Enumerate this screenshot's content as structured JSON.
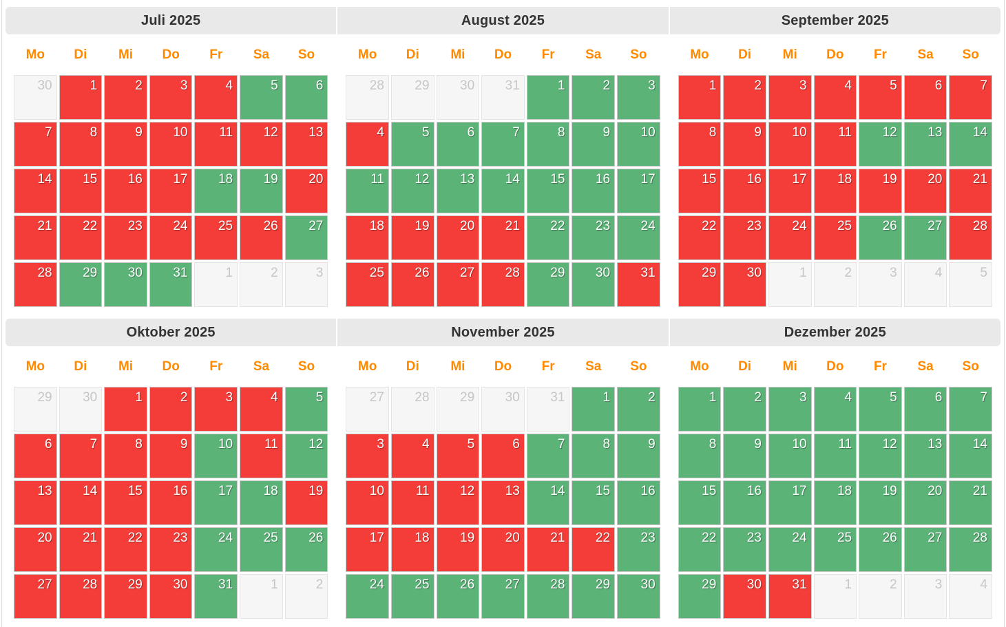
{
  "calendar": {
    "weekday_labels": [
      "Mo",
      "Di",
      "Mi",
      "Do",
      "Fr",
      "Sa",
      "So"
    ],
    "state_codes": {
      "a": "available",
      "b": "booked",
      "o": "other-month"
    },
    "months": [
      {
        "title": "Juli 2025",
        "days": [
          [
            30,
            "o"
          ],
          [
            1,
            "b"
          ],
          [
            2,
            "b"
          ],
          [
            3,
            "b"
          ],
          [
            4,
            "b"
          ],
          [
            5,
            "a"
          ],
          [
            6,
            "a"
          ],
          [
            7,
            "b"
          ],
          [
            8,
            "b"
          ],
          [
            9,
            "b"
          ],
          [
            10,
            "b"
          ],
          [
            11,
            "b"
          ],
          [
            12,
            "b"
          ],
          [
            13,
            "b"
          ],
          [
            14,
            "b"
          ],
          [
            15,
            "b"
          ],
          [
            16,
            "b"
          ],
          [
            17,
            "b"
          ],
          [
            18,
            "a"
          ],
          [
            19,
            "a"
          ],
          [
            20,
            "b"
          ],
          [
            21,
            "b"
          ],
          [
            22,
            "b"
          ],
          [
            23,
            "b"
          ],
          [
            24,
            "b"
          ],
          [
            25,
            "b"
          ],
          [
            26,
            "b"
          ],
          [
            27,
            "a"
          ],
          [
            28,
            "b"
          ],
          [
            29,
            "a"
          ],
          [
            30,
            "a"
          ],
          [
            31,
            "a"
          ],
          [
            1,
            "o"
          ],
          [
            2,
            "o"
          ],
          [
            3,
            "o"
          ]
        ]
      },
      {
        "title": "August 2025",
        "days": [
          [
            28,
            "o"
          ],
          [
            29,
            "o"
          ],
          [
            30,
            "o"
          ],
          [
            31,
            "o"
          ],
          [
            1,
            "a"
          ],
          [
            2,
            "a"
          ],
          [
            3,
            "a"
          ],
          [
            4,
            "b"
          ],
          [
            5,
            "a"
          ],
          [
            6,
            "a"
          ],
          [
            7,
            "a"
          ],
          [
            8,
            "a"
          ],
          [
            9,
            "a"
          ],
          [
            10,
            "a"
          ],
          [
            11,
            "a"
          ],
          [
            12,
            "a"
          ],
          [
            13,
            "a"
          ],
          [
            14,
            "a"
          ],
          [
            15,
            "a"
          ],
          [
            16,
            "a"
          ],
          [
            17,
            "a"
          ],
          [
            18,
            "b"
          ],
          [
            19,
            "b"
          ],
          [
            20,
            "b"
          ],
          [
            21,
            "b"
          ],
          [
            22,
            "a"
          ],
          [
            23,
            "a"
          ],
          [
            24,
            "a"
          ],
          [
            25,
            "b"
          ],
          [
            26,
            "b"
          ],
          [
            27,
            "b"
          ],
          [
            28,
            "b"
          ],
          [
            29,
            "a"
          ],
          [
            30,
            "a"
          ],
          [
            31,
            "b"
          ]
        ]
      },
      {
        "title": "September 2025",
        "days": [
          [
            1,
            "b"
          ],
          [
            2,
            "b"
          ],
          [
            3,
            "b"
          ],
          [
            4,
            "b"
          ],
          [
            5,
            "b"
          ],
          [
            6,
            "b"
          ],
          [
            7,
            "b"
          ],
          [
            8,
            "b"
          ],
          [
            9,
            "b"
          ],
          [
            10,
            "b"
          ],
          [
            11,
            "b"
          ],
          [
            12,
            "a"
          ],
          [
            13,
            "a"
          ],
          [
            14,
            "a"
          ],
          [
            15,
            "b"
          ],
          [
            16,
            "b"
          ],
          [
            17,
            "b"
          ],
          [
            18,
            "b"
          ],
          [
            19,
            "b"
          ],
          [
            20,
            "b"
          ],
          [
            21,
            "b"
          ],
          [
            22,
            "b"
          ],
          [
            23,
            "b"
          ],
          [
            24,
            "b"
          ],
          [
            25,
            "b"
          ],
          [
            26,
            "a"
          ],
          [
            27,
            "a"
          ],
          [
            28,
            "b"
          ],
          [
            29,
            "b"
          ],
          [
            30,
            "b"
          ],
          [
            1,
            "o"
          ],
          [
            2,
            "o"
          ],
          [
            3,
            "o"
          ],
          [
            4,
            "o"
          ],
          [
            5,
            "o"
          ]
        ]
      },
      {
        "title": "Oktober 2025",
        "days": [
          [
            29,
            "o"
          ],
          [
            30,
            "o"
          ],
          [
            1,
            "b"
          ],
          [
            2,
            "b"
          ],
          [
            3,
            "b"
          ],
          [
            4,
            "b"
          ],
          [
            5,
            "a"
          ],
          [
            6,
            "b"
          ],
          [
            7,
            "b"
          ],
          [
            8,
            "b"
          ],
          [
            9,
            "b"
          ],
          [
            10,
            "a"
          ],
          [
            11,
            "b"
          ],
          [
            12,
            "a"
          ],
          [
            13,
            "b"
          ],
          [
            14,
            "b"
          ],
          [
            15,
            "b"
          ],
          [
            16,
            "b"
          ],
          [
            17,
            "a"
          ],
          [
            18,
            "a"
          ],
          [
            19,
            "b"
          ],
          [
            20,
            "b"
          ],
          [
            21,
            "b"
          ],
          [
            22,
            "b"
          ],
          [
            23,
            "b"
          ],
          [
            24,
            "a"
          ],
          [
            25,
            "a"
          ],
          [
            26,
            "a"
          ],
          [
            27,
            "b"
          ],
          [
            28,
            "b"
          ],
          [
            29,
            "b"
          ],
          [
            30,
            "b"
          ],
          [
            31,
            "a"
          ],
          [
            1,
            "o"
          ],
          [
            2,
            "o"
          ]
        ]
      },
      {
        "title": "November 2025",
        "days": [
          [
            27,
            "o"
          ],
          [
            28,
            "o"
          ],
          [
            29,
            "o"
          ],
          [
            30,
            "o"
          ],
          [
            31,
            "o"
          ],
          [
            1,
            "a"
          ],
          [
            2,
            "a"
          ],
          [
            3,
            "b"
          ],
          [
            4,
            "b"
          ],
          [
            5,
            "b"
          ],
          [
            6,
            "b"
          ],
          [
            7,
            "a"
          ],
          [
            8,
            "a"
          ],
          [
            9,
            "a"
          ],
          [
            10,
            "b"
          ],
          [
            11,
            "b"
          ],
          [
            12,
            "b"
          ],
          [
            13,
            "b"
          ],
          [
            14,
            "a"
          ],
          [
            15,
            "a"
          ],
          [
            16,
            "a"
          ],
          [
            17,
            "b"
          ],
          [
            18,
            "b"
          ],
          [
            19,
            "b"
          ],
          [
            20,
            "b"
          ],
          [
            21,
            "b"
          ],
          [
            22,
            "b"
          ],
          [
            23,
            "a"
          ],
          [
            24,
            "a"
          ],
          [
            25,
            "a"
          ],
          [
            26,
            "a"
          ],
          [
            27,
            "a"
          ],
          [
            28,
            "a"
          ],
          [
            29,
            "a"
          ],
          [
            30,
            "a"
          ]
        ]
      },
      {
        "title": "Dezember 2025",
        "days": [
          [
            1,
            "a"
          ],
          [
            2,
            "a"
          ],
          [
            3,
            "a"
          ],
          [
            4,
            "a"
          ],
          [
            5,
            "a"
          ],
          [
            6,
            "a"
          ],
          [
            7,
            "a"
          ],
          [
            8,
            "a"
          ],
          [
            9,
            "a"
          ],
          [
            10,
            "a"
          ],
          [
            11,
            "a"
          ],
          [
            12,
            "a"
          ],
          [
            13,
            "a"
          ],
          [
            14,
            "a"
          ],
          [
            15,
            "a"
          ],
          [
            16,
            "a"
          ],
          [
            17,
            "a"
          ],
          [
            18,
            "a"
          ],
          [
            19,
            "a"
          ],
          [
            20,
            "a"
          ],
          [
            21,
            "a"
          ],
          [
            22,
            "a"
          ],
          [
            23,
            "a"
          ],
          [
            24,
            "a"
          ],
          [
            25,
            "a"
          ],
          [
            26,
            "a"
          ],
          [
            27,
            "a"
          ],
          [
            28,
            "a"
          ],
          [
            29,
            "a"
          ],
          [
            30,
            "b"
          ],
          [
            31,
            "b"
          ],
          [
            1,
            "o"
          ],
          [
            2,
            "o"
          ],
          [
            3,
            "o"
          ],
          [
            4,
            "o"
          ]
        ]
      }
    ]
  },
  "colors": {
    "available": "#5cb378",
    "booked": "#f43d38",
    "month_header_bg": "#e9e9e9",
    "month_header_text": "#333333",
    "weekday_text": "#ff8a00",
    "other_month_bg": "#f6f6f6",
    "other_month_text": "#c6c6c6",
    "other_month_border": "#e4e4e4",
    "cell_border": "#c9c9c9",
    "day_text": "#ffffff",
    "board_border": "#dadada"
  }
}
